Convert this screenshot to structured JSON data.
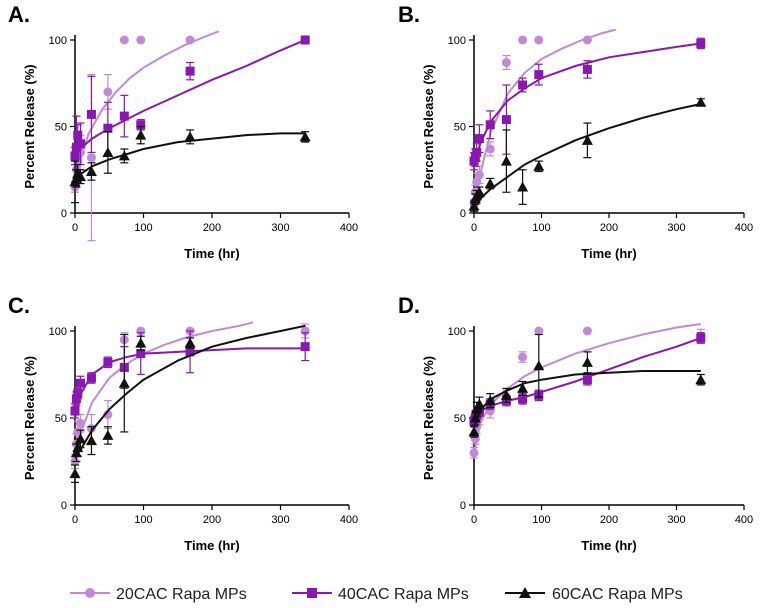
{
  "legend": [
    {
      "name": "20CAC Rapa MPs",
      "color": "#c28ad6",
      "marker": "circle"
    },
    {
      "name": "40CAC Rapa MPs",
      "color": "#8a18b0",
      "marker": "square"
    },
    {
      "name": "60CAC Rapa MPs",
      "color": "#111111",
      "marker": "triangle"
    }
  ],
  "chart_data": [
    {
      "panel": "A.",
      "type": "scatter",
      "xlabel": "Time (hr)",
      "ylabel": "Percent Release (%)",
      "xlim": [
        0,
        400
      ],
      "ylim": [
        0,
        100
      ],
      "xticks": [
        0,
        100,
        200,
        300,
        400
      ],
      "yticks": [
        0,
        50,
        100
      ],
      "series": [
        {
          "name": "20CAC Rapa MPs",
          "color": "#c28ad6",
          "marker": "circle",
          "x": [
            0,
            2,
            4,
            8,
            24,
            48,
            72,
            96,
            168
          ],
          "y": [
            15,
            25,
            30,
            35,
            32,
            70,
            100,
            100,
            100
          ],
          "err": [
            3,
            8,
            8,
            10,
            48,
            10,
            0,
            0,
            0
          ],
          "fit": {
            "x": [
              0,
              10,
              20,
              40,
              60,
              80,
              100,
              130,
              160,
              190,
              210
            ],
            "y": [
              14,
              34,
              46,
              60,
              70,
              78,
              84,
              91,
              97,
              102,
              105
            ]
          }
        },
        {
          "name": "40CAC Rapa MPs",
          "color": "#8a18b0",
          "marker": "square",
          "x": [
            0,
            2,
            4,
            8,
            24,
            48,
            72,
            96,
            168,
            336
          ],
          "y": [
            33,
            38,
            45,
            40,
            57,
            49,
            56,
            51,
            82,
            100
          ],
          "err": [
            5,
            18,
            6,
            12,
            22,
            15,
            12,
            3,
            5,
            0
          ],
          "fit": {
            "x": [
              0,
              10,
              25,
              50,
              75,
              100,
              150,
              200,
              250,
              300,
              336
            ],
            "y": [
              32,
              38,
              43,
              49,
              54,
              59,
              68,
              77,
              85,
              94,
              100
            ]
          }
        },
        {
          "name": "60CAC Rapa MPs",
          "color": "#111111",
          "marker": "triangle",
          "x": [
            0,
            2,
            4,
            8,
            24,
            48,
            72,
            96,
            168,
            336
          ],
          "y": [
            18,
            20,
            23,
            21,
            24,
            35,
            33,
            45,
            44,
            44
          ],
          "err": [
            12,
            5,
            5,
            4,
            5,
            12,
            4,
            5,
            4,
            3
          ],
          "fit": {
            "x": [
              0,
              10,
              25,
              50,
              75,
              100,
              150,
              200,
              250,
              300,
              336
            ],
            "y": [
              20,
              23,
              27,
              31,
              34,
              37,
              41,
              43,
              45,
              46,
              46
            ]
          }
        }
      ]
    },
    {
      "panel": "B.",
      "type": "scatter",
      "xlabel": "Time (hr)",
      "ylabel": "Percent Release (%)",
      "xlim": [
        0,
        400
      ],
      "ylim": [
        0,
        100
      ],
      "xticks": [
        0,
        100,
        200,
        300,
        400
      ],
      "yticks": [
        0,
        50,
        100
      ],
      "series": [
        {
          "name": "20CAC Rapa MPs",
          "color": "#c28ad6",
          "marker": "circle",
          "x": [
            0,
            2,
            4,
            8,
            24,
            48,
            72,
            96,
            168
          ],
          "y": [
            5,
            12,
            18,
            22,
            37,
            87,
            100,
            100,
            100
          ],
          "err": [
            3,
            4,
            5,
            5,
            4,
            4,
            0,
            0,
            0
          ],
          "fit": {
            "x": [
              0,
              10,
              25,
              50,
              75,
              100,
              130,
              160,
              190,
              210
            ],
            "y": [
              2,
              24,
              47,
              69,
              81,
              89,
              95,
              100,
              104,
              106
            ]
          }
        },
        {
          "name": "40CAC Rapa MPs",
          "color": "#8a18b0",
          "marker": "square",
          "x": [
            0,
            2,
            4,
            8,
            24,
            48,
            72,
            96,
            168,
            336
          ],
          "y": [
            30,
            32,
            35,
            43,
            51,
            54,
            74,
            80,
            83,
            98
          ],
          "err": [
            5,
            5,
            5,
            8,
            8,
            20,
            4,
            6,
            5,
            3
          ],
          "fit": {
            "x": [
              0,
              10,
              25,
              50,
              75,
              100,
              150,
              200,
              250,
              300,
              336
            ],
            "y": [
              28,
              41,
              53,
              65,
              72,
              78,
              85,
              90,
              93,
              96,
              98
            ]
          }
        },
        {
          "name": "60CAC Rapa MPs",
          "color": "#111111",
          "marker": "triangle",
          "x": [
            0,
            2,
            4,
            8,
            24,
            48,
            72,
            96,
            168,
            336
          ],
          "y": [
            4,
            8,
            10,
            12,
            17,
            30,
            15,
            27,
            42,
            64
          ],
          "err": [
            3,
            3,
            3,
            3,
            3,
            18,
            10,
            3,
            10,
            2
          ],
          "fit": {
            "x": [
              0,
              25,
              50,
              75,
              100,
              150,
              200,
              250,
              300,
              336
            ],
            "y": [
              5,
              14,
              21,
              28,
              33,
              42,
              49,
              55,
              60,
              63
            ]
          }
        }
      ]
    },
    {
      "panel": "C.",
      "type": "scatter",
      "xlabel": "Time (hr)",
      "ylabel": "Percent Release (%)",
      "xlim": [
        0,
        400
      ],
      "ylim": [
        0,
        100
      ],
      "xticks": [
        0,
        100,
        200,
        300,
        400
      ],
      "yticks": [
        0,
        50,
        100
      ],
      "series": [
        {
          "name": "20CAC Rapa MPs",
          "color": "#c28ad6",
          "marker": "circle",
          "x": [
            0,
            2,
            4,
            8,
            24,
            48,
            72,
            96,
            168,
            336
          ],
          "y": [
            25,
            35,
            42,
            47,
            44,
            52,
            95,
            100,
            100,
            100
          ],
          "err": [
            4,
            6,
            6,
            5,
            8,
            8,
            4,
            0,
            0,
            4
          ],
          "fit": {
            "x": [
              0,
              10,
              25,
              50,
              75,
              100,
              130,
              160,
              200,
              240,
              260
            ],
            "y": [
              23,
              43,
              59,
              73,
              81,
              87,
              92,
              96,
              100,
              103,
              105
            ]
          }
        },
        {
          "name": "40CAC Rapa MPs",
          "color": "#8a18b0",
          "marker": "square",
          "x": [
            0,
            2,
            4,
            8,
            24,
            48,
            72,
            96,
            168,
            336
          ],
          "y": [
            54,
            61,
            64,
            70,
            73,
            82,
            79,
            87,
            88,
            91
          ],
          "err": [
            4,
            4,
            3,
            4,
            3,
            3,
            12,
            12,
            12,
            8
          ],
          "fit": {
            "x": [
              0,
              10,
              25,
              50,
              75,
              100,
              150,
              200,
              250,
              300,
              336
            ],
            "y": [
              50,
              65,
              75,
              82,
              85,
              87,
              88,
              89,
              90,
              90,
              90
            ]
          }
        },
        {
          "name": "60CAC Rapa MPs",
          "color": "#111111",
          "marker": "triangle",
          "x": [
            0,
            2,
            4,
            8,
            24,
            48,
            72,
            96,
            168
          ],
          "y": [
            18,
            30,
            33,
            38,
            37,
            40,
            70,
            93,
            93
          ],
          "err": [
            5,
            5,
            5,
            5,
            8,
            5,
            28,
            4,
            3
          ],
          "fit": {
            "x": [
              0,
              10,
              25,
              50,
              75,
              100,
              150,
              200,
              250,
              300,
              336
            ],
            "y": [
              27,
              33,
              43,
              55,
              64,
              72,
              83,
              91,
              96,
              100,
              103
            ]
          }
        }
      ]
    },
    {
      "panel": "D.",
      "type": "scatter",
      "xlabel": "Time (hr)",
      "ylabel": "Percent Release (%)",
      "xlim": [
        0,
        400
      ],
      "ylim": [
        0,
        100
      ],
      "xticks": [
        0,
        100,
        200,
        300,
        400
      ],
      "yticks": [
        0,
        50,
        100
      ],
      "series": [
        {
          "name": "20CAC Rapa MPs",
          "color": "#c28ad6",
          "marker": "circle",
          "x": [
            0,
            2,
            4,
            8,
            24,
            48,
            72,
            96,
            168,
            336
          ],
          "y": [
            30,
            38,
            45,
            50,
            54,
            62,
            85,
            100,
            100,
            97
          ],
          "err": [
            3,
            3,
            4,
            4,
            4,
            4,
            3,
            0,
            0,
            4
          ],
          "fit": {
            "x": [
              0,
              10,
              25,
              50,
              75,
              100,
              150,
              200,
              250,
              300,
              336
            ],
            "y": [
              30,
              48,
              58,
              67,
              74,
              79,
              87,
              93,
              98,
              102,
              104
            ]
          }
        },
        {
          "name": "40CAC Rapa MPs",
          "color": "#8a18b0",
          "marker": "square",
          "x": [
            0,
            2,
            4,
            8,
            24,
            48,
            72,
            96,
            168,
            336
          ],
          "y": [
            48,
            50,
            52,
            54,
            58,
            60,
            61,
            63,
            72,
            96
          ],
          "err": [
            3,
            3,
            3,
            3,
            3,
            3,
            3,
            3,
            3,
            3
          ],
          "fit": {
            "x": [
              0,
              10,
              25,
              50,
              75,
              100,
              150,
              200,
              250,
              300,
              336
            ],
            "y": [
              47,
              54,
              57,
              60,
              62,
              65,
              71,
              78,
              85,
              91,
              96
            ]
          }
        },
        {
          "name": "60CAC Rapa MPs",
          "color": "#111111",
          "marker": "triangle",
          "x": [
            0,
            2,
            4,
            8,
            24,
            48,
            72,
            96,
            168,
            336
          ],
          "y": [
            42,
            50,
            55,
            58,
            60,
            63,
            67,
            80,
            82,
            72
          ],
          "err": [
            3,
            4,
            4,
            4,
            4,
            4,
            4,
            18,
            6,
            3
          ],
          "fit": {
            "x": [
              0,
              10,
              25,
              50,
              75,
              100,
              150,
              200,
              250,
              300,
              336
            ],
            "y": [
              45,
              55,
              61,
              66,
              70,
              72,
              75,
              76,
              77,
              77,
              77
            ]
          }
        }
      ]
    }
  ]
}
